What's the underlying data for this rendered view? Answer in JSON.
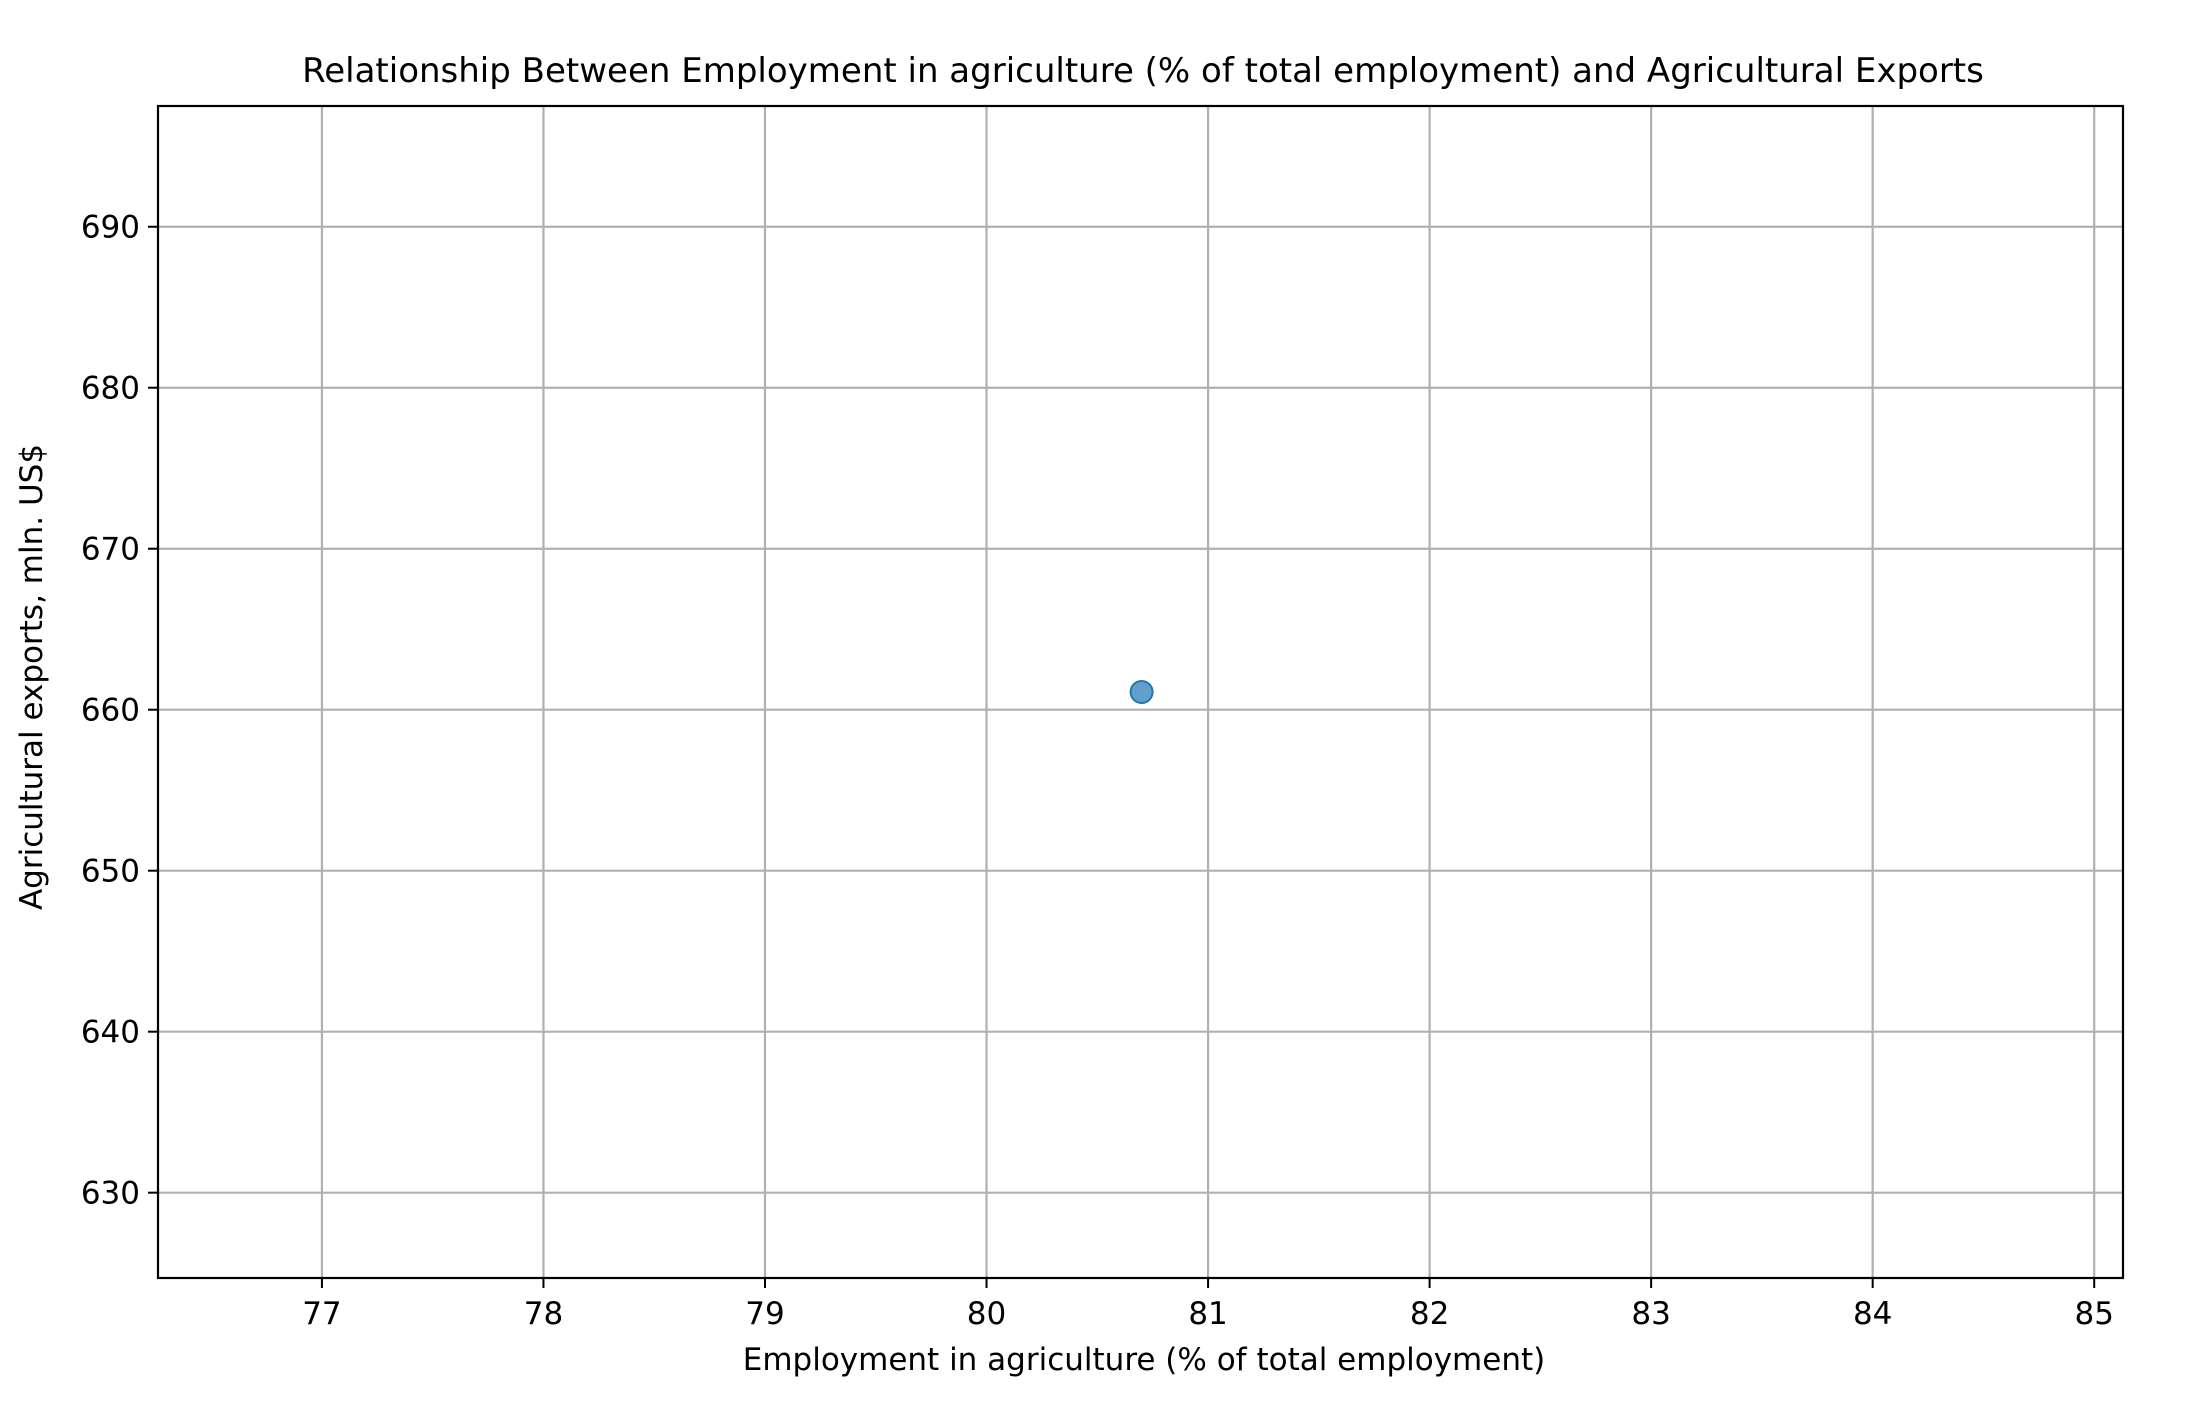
{
  "chart_data": {
    "type": "scatter",
    "title": "Relationship Between Employment in agriculture (% of total employment) and Agricultural Exports",
    "xlabel": "Employment in agriculture (% of total employment)",
    "ylabel": "Agricultural exports, mln. US$",
    "xlim": [
      76.26,
      85.13
    ],
    "ylim": [
      624.7,
      697.5
    ],
    "xticks": [
      77,
      78,
      79,
      80,
      81,
      82,
      83,
      84,
      85
    ],
    "yticks": [
      630,
      640,
      650,
      660,
      670,
      680,
      690
    ],
    "grid": true,
    "points": [
      {
        "x": 80.7,
        "y": 661.1
      }
    ],
    "colors": {
      "marker_fill": "#1f77b4",
      "marker_opacity": 0.7,
      "grid": "#b0b0b0",
      "axis": "#000000"
    }
  }
}
